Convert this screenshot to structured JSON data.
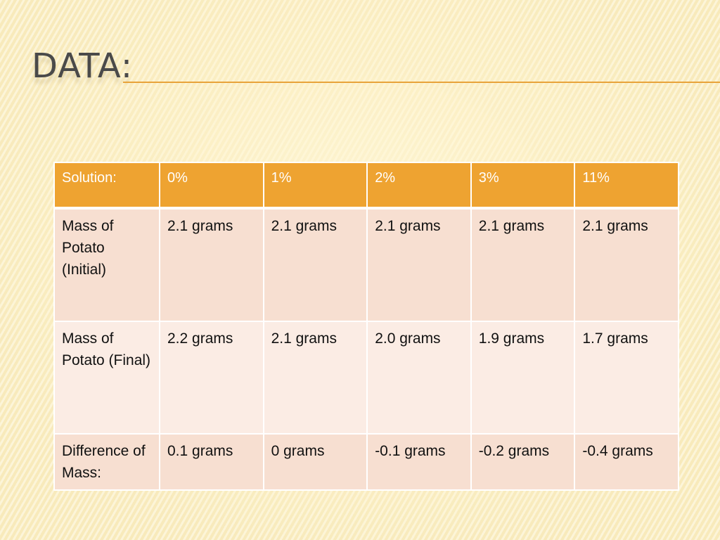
{
  "slide": {
    "title": "DATA:"
  },
  "table": {
    "headers": [
      "Solution:",
      "0%",
      "1%",
      "2%",
      "3%",
      "11%"
    ],
    "rows": [
      {
        "label": "Mass of Potato (Initial)",
        "values": [
          "2.1 grams",
          "2.1 grams",
          "2.1 grams",
          "2.1 grams",
          "2.1 grams"
        ]
      },
      {
        "label": "Mass of Potato (Final)",
        "values": [
          "2.2 grams",
          "2.1 grams",
          "2.0 grams",
          "1.9 grams",
          "1.7 grams"
        ]
      },
      {
        "label": "Difference of Mass:",
        "values": [
          "0.1 grams",
          "0 grams",
          "-0.1 grams",
          "-0.2 grams",
          "-0.4 grams"
        ]
      }
    ]
  },
  "colors": {
    "header_bg": "#eea331",
    "row_dark_bg": "#f7dfd1",
    "row_light_bg": "#fbece4",
    "title_rule": "#e8a33a",
    "title_text": "#4a4a4a"
  }
}
